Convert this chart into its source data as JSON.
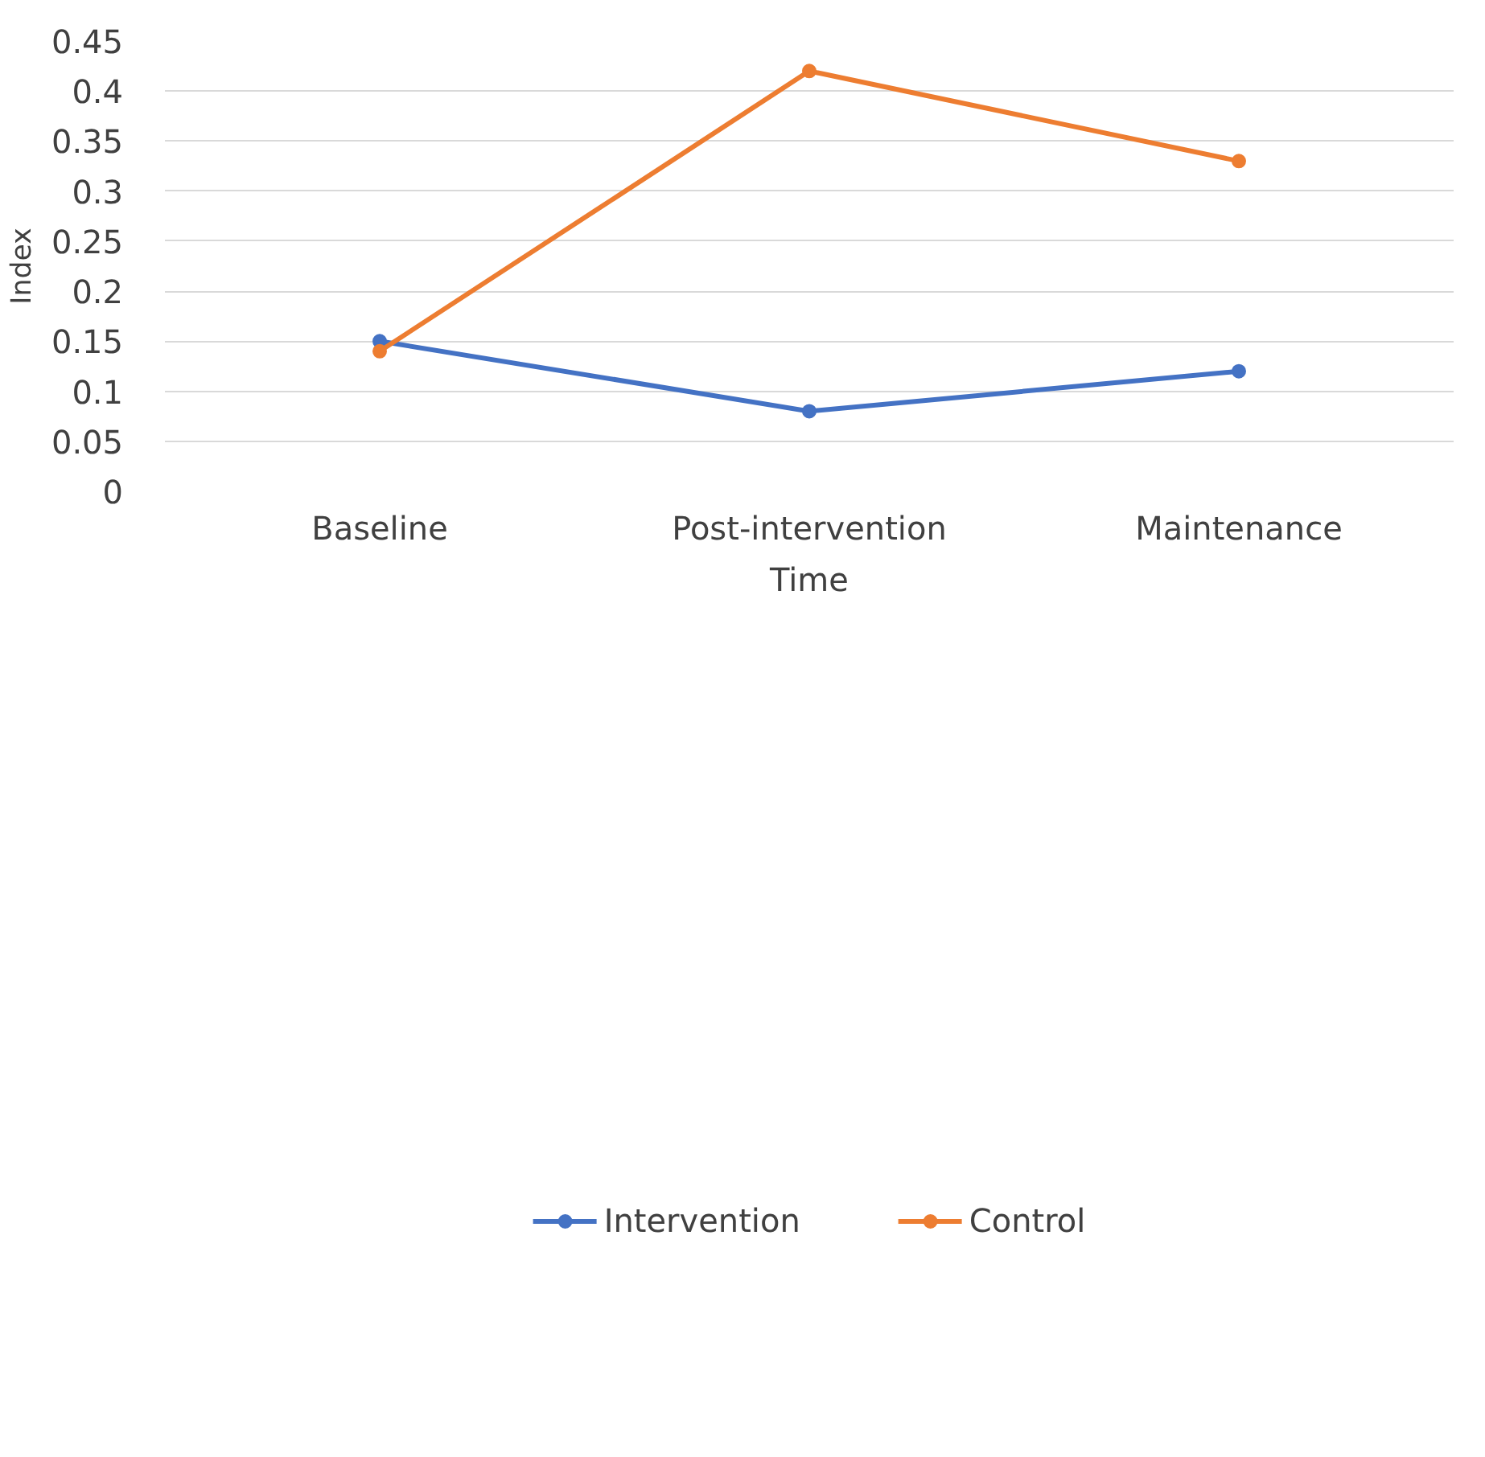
{
  "chart_data": {
    "type": "line",
    "xlabel": "Time",
    "ylabel": "Index",
    "categories": [
      "Baseline",
      "Post-intervention",
      "Maintenance"
    ],
    "series": [
      {
        "name": "Intervention",
        "color": "#4472c4",
        "values": [
          0.15,
          0.08,
          0.12
        ]
      },
      {
        "name": "Control",
        "color": "#ed7d31",
        "values": [
          0.14,
          0.42,
          0.33
        ]
      }
    ],
    "ylim": [
      0,
      0.45
    ],
    "yticks": [
      0,
      0.05,
      0.1,
      0.15,
      0.2,
      0.25,
      0.3,
      0.35,
      0.4,
      0.45
    ],
    "grid": "y",
    "legend": "bottom",
    "marker": "circle",
    "line_style": "solid"
  }
}
